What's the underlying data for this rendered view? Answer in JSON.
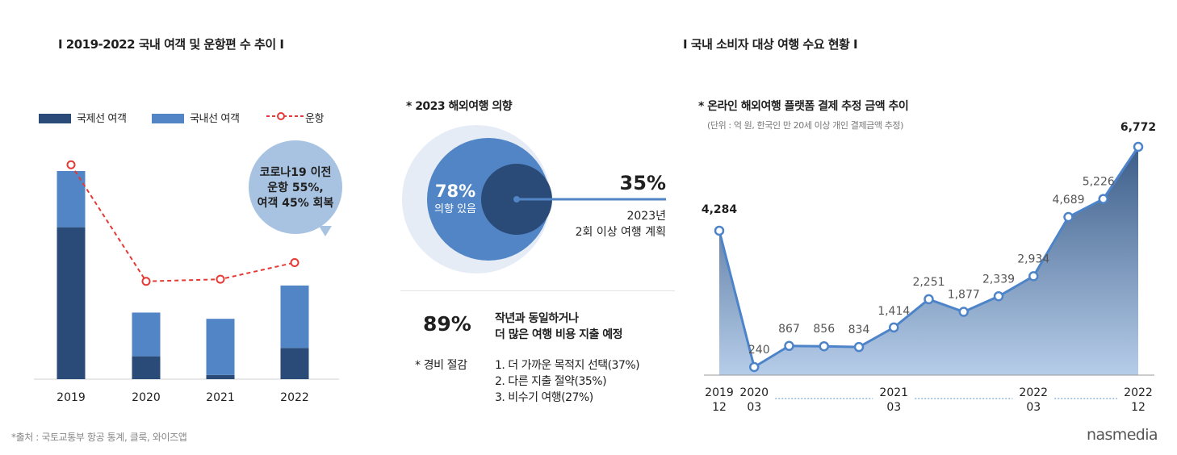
{
  "left_panel": {
    "title": "I 2019-2022 국내 여객 및 운항편 수 추이 I",
    "legend": {
      "international": "국제선 여객",
      "domestic": "국내선 여객",
      "flights": "운항"
    },
    "callout": [
      "코로나19 이전",
      "운항 55%,",
      "여객 45% 회복"
    ],
    "source": "*출처 : 국토교통부 항공 통계, 클룩, 와이즈앱"
  },
  "middle_panel": {
    "title": "* 2023 해외여행 의향",
    "intent_value": "78%",
    "intent_label": "의향 있음",
    "plan_value": "35%",
    "plan_label_1": "2023년",
    "plan_label_2": "2회 이상 여행 계획",
    "spend_value": "89%",
    "spend_label_1": "작년과 동일하거나",
    "spend_label_2": "더 많은 여행 비용 지출 예정",
    "cost_saving_label": "* 경비 절감",
    "cost_saving_items": [
      "1. 더 가까운 목적지 선택(37%)",
      "2. 다른 지출 절약(35%)",
      "3. 비수기 여행(27%)"
    ]
  },
  "right_panel": {
    "title": "I 국내 소비자 대상 여행 수요 현황 I",
    "chart_title": "* 온라인 해외여행 플랫폼 결제 추정 금액 추이",
    "unit_note": "(단위 : 억 원, 한국인 만 20세 이상 개인 결제금액 추정)"
  },
  "brand": "nasmedia",
  "colors": {
    "international": "#2a4a78",
    "domestic": "#5185c5",
    "flights": "#e53935",
    "callout": "#a8c3e1",
    "outer_ring": "#e6ecf6",
    "intent_circle": "#5185c5",
    "plan_circle": "#2a4a78",
    "area_top": "#3c5d89",
    "area_bottom": "#b6cde9",
    "line": "#4d84c9"
  },
  "chart_data": [
    {
      "type": "bar",
      "stacked": true,
      "title": "",
      "categories": [
        "2019",
        "2020",
        "2021",
        "2022"
      ],
      "series": [
        {
          "name": "국제선 여객",
          "values": [
            73,
            11,
            2,
            15
          ]
        },
        {
          "name": "국내선 여객",
          "values": [
            27,
            21,
            27,
            30
          ]
        }
      ],
      "ylim": [
        0,
        100
      ],
      "line_series": {
        "name": "운항",
        "values": [
          103,
          47,
          48,
          56
        ],
        "style": "dashed"
      },
      "legend": "top-left",
      "grid": false
    },
    {
      "type": "pie",
      "title": "* 2023 해외여행 의향",
      "slices": [
        {
          "name": "의향 있음",
          "value": 78
        },
        {
          "name": "2023년 2회 이상 여행 계획",
          "value": 35
        }
      ]
    },
    {
      "type": "area",
      "title": "* 온라인 해외여행 플랫폼 결제 추정 금액 추이",
      "x": [
        "2019-12",
        "2020-03",
        "2020-06",
        "2020-09",
        "2020-12",
        "2021-03",
        "2021-06",
        "2021-09",
        "2021-12",
        "2022-03",
        "2022-06",
        "2022-09",
        "2022-12"
      ],
      "x_tick_labels": [
        {
          "x": "2019-12",
          "top": "2019",
          "bottom": "12"
        },
        {
          "x": "2020-03",
          "top": "2020",
          "bottom": "03"
        },
        {
          "x": "2021-03",
          "top": "2021",
          "bottom": "03"
        },
        {
          "x": "2022-03",
          "top": "2022",
          "bottom": "03"
        },
        {
          "x": "2022-12",
          "top": "2022",
          "bottom": "12"
        }
      ],
      "values": [
        4284,
        240,
        867,
        856,
        834,
        1414,
        2251,
        1877,
        2339,
        2934,
        4689,
        5226,
        6772
      ],
      "value_labels": [
        "4,284",
        "240",
        "867",
        "856",
        "834",
        "1,414",
        "2,251",
        "1,877",
        "2,339",
        "2,934",
        "4,689",
        "5,226",
        "6,772"
      ],
      "ylim": [
        0,
        6772
      ],
      "grid": false
    }
  ]
}
